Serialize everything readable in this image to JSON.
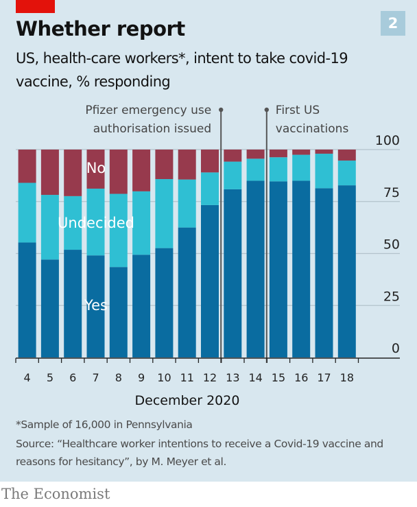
{
  "header": {
    "title": "Whether report",
    "subtitle": "US, health-care workers*, intent to take covid-19 vaccine, % responding",
    "chart_number": "2"
  },
  "footer": {
    "note": "*Sample of 16,000 in Pennsylvania",
    "source": "Source: “Healthcare worker intentions to receive a Covid-19 vaccine and reasons for hesitancy”, by M. Meyer et al.",
    "brand": "The Economist"
  },
  "colors": {
    "background": "#d8e7ef",
    "brand_red": "#e3120b",
    "yes": "#0a6ca0",
    "undecided": "#2fbfd3",
    "no": "#973a4d",
    "gridline": "#b3c3cc",
    "axis": "#222222",
    "annotation": "#555555"
  },
  "chart_data": {
    "type": "bar",
    "stacked": true,
    "title": "Whether report",
    "subtitle": "US, health-care workers*, intent to take covid-19 vaccine, % responding",
    "xlabel": "December 2020",
    "ylabel": "",
    "categories": [
      "4",
      "5",
      "6",
      "7",
      "8",
      "9",
      "10",
      "11",
      "12",
      "13",
      "14",
      "15",
      "16",
      "17",
      "18"
    ],
    "series": [
      {
        "name": "Yes",
        "values": [
          55.3,
          47.1,
          51.8,
          49.1,
          43.5,
          49.4,
          52.6,
          62.5,
          73.3,
          80.9,
          85.0,
          84.7,
          85.0,
          81.4,
          82.8
        ]
      },
      {
        "name": "Undecided",
        "values": [
          28.7,
          31.1,
          25.8,
          32.1,
          35.2,
          30.5,
          33.2,
          23.1,
          15.7,
          13.3,
          10.6,
          11.6,
          12.5,
          16.6,
          11.9
        ]
      },
      {
        "name": "No",
        "values": [
          16.0,
          21.8,
          22.4,
          18.8,
          21.3,
          20.1,
          14.2,
          14.4,
          11.0,
          5.8,
          4.4,
          3.7,
          2.5,
          2.0,
          5.3
        ]
      }
    ],
    "series_labels": [
      "Yes",
      "Undecided",
      "No"
    ],
    "ylim": [
      0,
      100
    ],
    "yticks": [
      "0",
      "25",
      "50",
      "75",
      "100"
    ],
    "ytick_values": [
      0,
      25,
      50,
      75,
      100
    ],
    "grid": true,
    "y_axis_side": "right",
    "legend": "inline labels on left bars",
    "annotations": [
      {
        "text_lines": [
          "Pfizer emergency use",
          "authorisation issued"
        ],
        "between": [
          "12",
          "13"
        ],
        "side": "left"
      },
      {
        "text_lines": [
          "First US",
          "vaccinations"
        ],
        "between": [
          "14",
          "15"
        ],
        "side": "right"
      }
    ]
  }
}
